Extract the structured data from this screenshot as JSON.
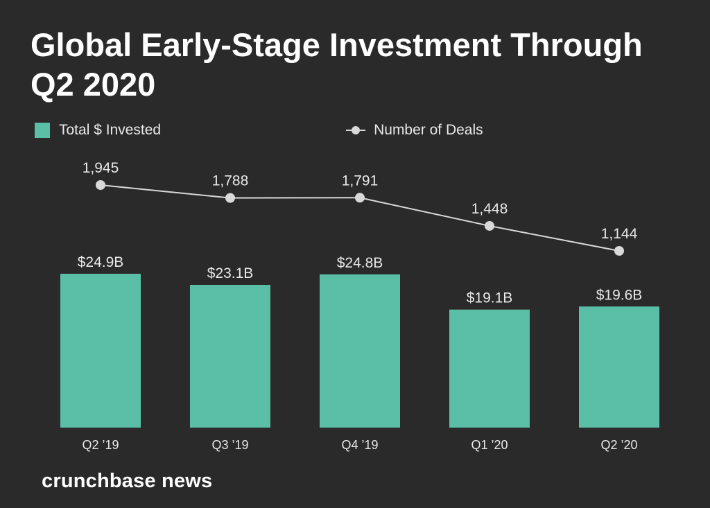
{
  "colors": {
    "background": "#2a2a2a",
    "bar": "#5bbfa8",
    "line": "#d9d9d9",
    "text": "#e8e8e8",
    "title": "#ffffff"
  },
  "brand": "crunchbase news",
  "chart_data": {
    "type": "bar",
    "title": "Global Early-Stage Investment Through Q2 2020",
    "categories": [
      "Q2 ’19",
      "Q3 ’19",
      "Q4 ’19",
      "Q1 ’20",
      "Q2 ’20"
    ],
    "legend_position": "top-left",
    "grid": false,
    "series": [
      {
        "name": "Total $ Invested",
        "type": "bar",
        "values": [
          24.9,
          23.1,
          24.8,
          19.1,
          19.6
        ],
        "labels": [
          "$24.9B",
          "$23.1B",
          "$24.8B",
          "$19.1B",
          "$19.6B"
        ],
        "unit": "$B"
      },
      {
        "name": "Number of Deals",
        "type": "line",
        "values": [
          1945,
          1788,
          1791,
          1448,
          1144
        ],
        "labels": [
          "1,945",
          "1,788",
          "1,791",
          "1,448",
          "1,144"
        ]
      }
    ]
  }
}
